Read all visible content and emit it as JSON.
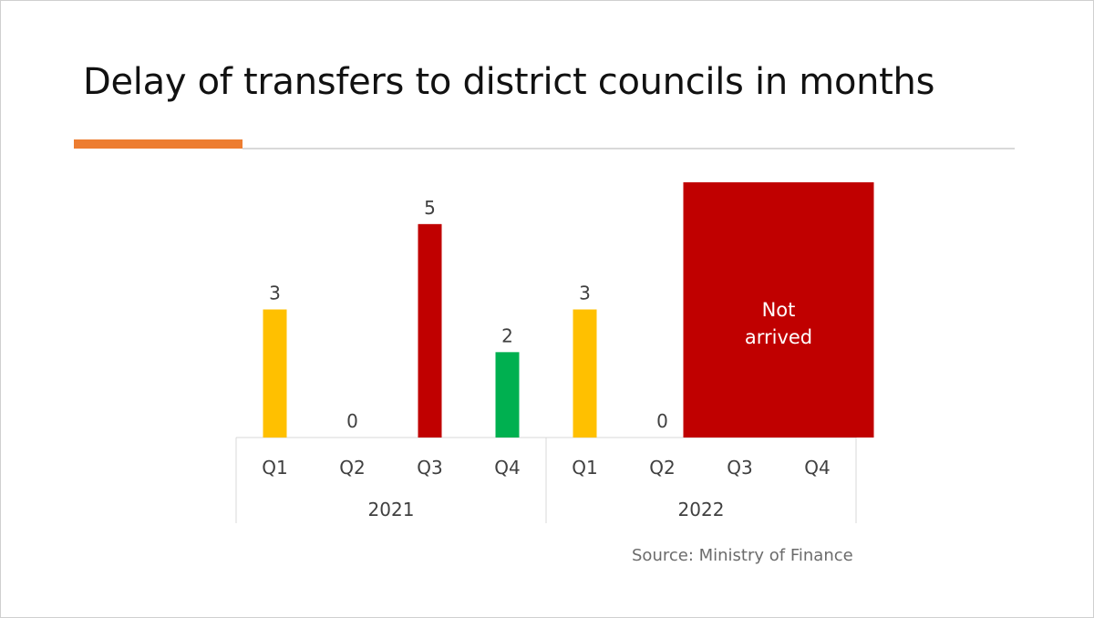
{
  "slide": {
    "title": "Delay of transfers to district councils in months",
    "source": "Source: Ministry of Finance"
  },
  "colors": {
    "accent": "#ed7d31",
    "yellow": "#ffc000",
    "red": "#c00000",
    "green": "#00b050"
  },
  "chart_data": {
    "type": "bar",
    "title": "Delay of transfers to district councils in months",
    "xlabel": "",
    "ylabel": "",
    "ylim": [
      0,
      6
    ],
    "grid": false,
    "legend": "none",
    "groups": [
      {
        "label": "2021",
        "quarters": [
          "Q1",
          "Q2",
          "Q3",
          "Q4"
        ]
      },
      {
        "label": "2022",
        "quarters": [
          "Q1",
          "Q2",
          "Q3",
          "Q4"
        ]
      }
    ],
    "bars": [
      {
        "year": "2021",
        "quarter": "Q1",
        "value": 3,
        "label": "3",
        "color": "#ffc000"
      },
      {
        "year": "2021",
        "quarter": "Q2",
        "value": 0,
        "label": "0",
        "color": "#ffc000"
      },
      {
        "year": "2021",
        "quarter": "Q3",
        "value": 5,
        "label": "5",
        "color": "#c00000"
      },
      {
        "year": "2021",
        "quarter": "Q4",
        "value": 2,
        "label": "2",
        "color": "#00b050"
      },
      {
        "year": "2022",
        "quarter": "Q1",
        "value": 3,
        "label": "3",
        "color": "#ffc000"
      },
      {
        "year": "2022",
        "quarter": "Q2",
        "value": 0,
        "label": "0",
        "color": "#ffc000"
      }
    ],
    "not_arrived": {
      "quarters": [
        "Q3",
        "Q4"
      ],
      "year": "2022",
      "label_lines": [
        "Not",
        "arrived"
      ],
      "color": "#c00000"
    }
  }
}
